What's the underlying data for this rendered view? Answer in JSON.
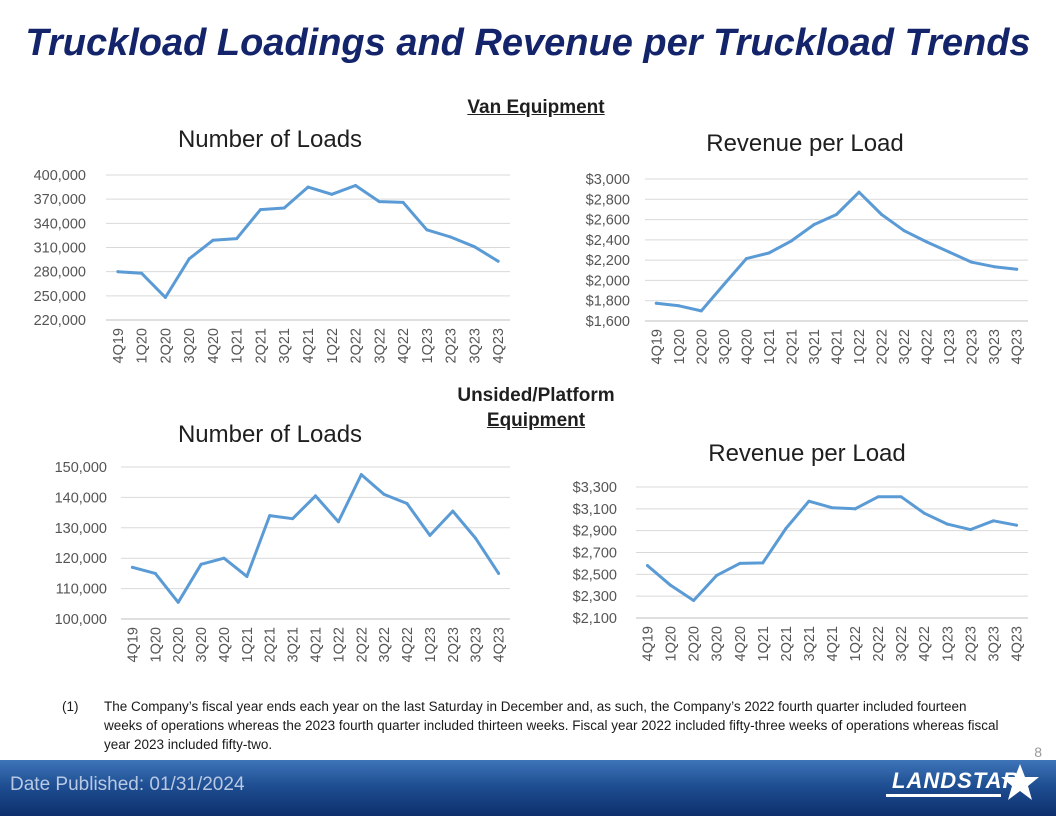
{
  "page": {
    "title": "Truckload Loadings and Revenue per Truckload Trends",
    "van_label": "Van Equipment",
    "unsided_label_line1": "Unsided/Platform",
    "unsided_label_line2": "Equipment",
    "footnote_number": "(1)",
    "footnote_text": "The Company’s fiscal year ends each year on the last Saturday in December and, as such, the Company’s 2022 fourth quarter included fourteen weeks of operations whereas the 2023 fourth quarter included thirteen weeks. Fiscal year 2022 included fifty-three weeks of operations whereas fiscal year 2023 included fifty-two.",
    "page_number": "8",
    "date_published": "Date Published:  01/31/2024",
    "logo_text": "LANDSTAR",
    "line_color": "#5b9bd5",
    "title_color": "#14246b"
  },
  "chart_data": [
    {
      "id": "van-loads",
      "type": "line",
      "title": "Number of Loads",
      "categories": [
        "4Q19",
        "1Q20",
        "2Q20",
        "3Q20",
        "4Q20",
        "1Q21",
        "2Q21",
        "3Q21",
        "4Q21",
        "1Q22",
        "2Q22",
        "3Q22",
        "4Q22",
        "1Q23",
        "2Q23",
        "3Q23",
        "4Q23"
      ],
      "values": [
        280000,
        278000,
        248000,
        296000,
        319000,
        321000,
        357000,
        359000,
        385000,
        376000,
        387000,
        367000,
        366000,
        332000,
        323000,
        311000,
        293000
      ],
      "ylim": [
        220000,
        400000
      ],
      "yticks": [
        220000,
        250000,
        280000,
        310000,
        340000,
        370000,
        400000
      ],
      "ytick_labels": [
        "220,000",
        "250,000",
        "280,000",
        "310,000",
        "340,000",
        "370,000",
        "400,000"
      ]
    },
    {
      "id": "van-revenue",
      "type": "line",
      "title": "Revenue per Load",
      "categories": [
        "4Q19",
        "1Q20",
        "2Q20",
        "3Q20",
        "4Q20",
        "1Q21",
        "2Q21",
        "3Q21",
        "4Q21",
        "1Q22",
        "2Q22",
        "3Q22",
        "4Q22",
        "1Q23",
        "2Q23",
        "3Q23",
        "4Q23"
      ],
      "values": [
        1775,
        1750,
        1700,
        1960,
        2215,
        2270,
        2390,
        2550,
        2650,
        2870,
        2650,
        2490,
        2380,
        2280,
        2180,
        2135,
        2110
      ],
      "ylim": [
        1600,
        3000
      ],
      "yticks": [
        1600,
        1800,
        2000,
        2200,
        2400,
        2600,
        2800,
        3000
      ],
      "ytick_labels": [
        "$1,600",
        "$1,800",
        "$2,000",
        "$2,200",
        "$2,400",
        "$2,600",
        "$2,800",
        "$3,000"
      ]
    },
    {
      "id": "unsided-loads",
      "type": "line",
      "title": "Number of Loads",
      "categories": [
        "4Q19",
        "1Q20",
        "2Q20",
        "3Q20",
        "4Q20",
        "1Q21",
        "2Q21",
        "3Q21",
        "4Q21",
        "1Q22",
        "2Q22",
        "3Q22",
        "4Q22",
        "1Q23",
        "2Q23",
        "3Q23",
        "4Q23"
      ],
      "values": [
        117000,
        115000,
        105500,
        118000,
        120000,
        114000,
        134000,
        133000,
        140500,
        132000,
        147500,
        141000,
        138000,
        127500,
        135500,
        126500,
        115000
      ],
      "ylim": [
        100000,
        150000
      ],
      "yticks": [
        100000,
        110000,
        120000,
        130000,
        140000,
        150000
      ],
      "ytick_labels": [
        "100,000",
        "110,000",
        "120,000",
        "130,000",
        "140,000",
        "150,000"
      ]
    },
    {
      "id": "unsided-revenue",
      "type": "line",
      "title": "Revenue per Load",
      "categories": [
        "4Q19",
        "1Q20",
        "2Q20",
        "3Q20",
        "4Q20",
        "1Q21",
        "2Q21",
        "3Q21",
        "4Q21",
        "1Q22",
        "2Q22",
        "3Q22",
        "4Q22",
        "1Q23",
        "2Q23",
        "3Q23",
        "4Q23"
      ],
      "values": [
        2580,
        2400,
        2260,
        2490,
        2600,
        2605,
        2920,
        3170,
        3110,
        3100,
        3210,
        3210,
        3060,
        2960,
        2910,
        2990,
        2950
      ],
      "ylim": [
        2100,
        3300
      ],
      "yticks": [
        2100,
        2300,
        2500,
        2700,
        2900,
        3100,
        3300
      ],
      "ytick_labels": [
        "$2,100",
        "$2,300",
        "$2,500",
        "$2,700",
        "$2,900",
        "$3,100",
        "$3,300"
      ]
    }
  ]
}
